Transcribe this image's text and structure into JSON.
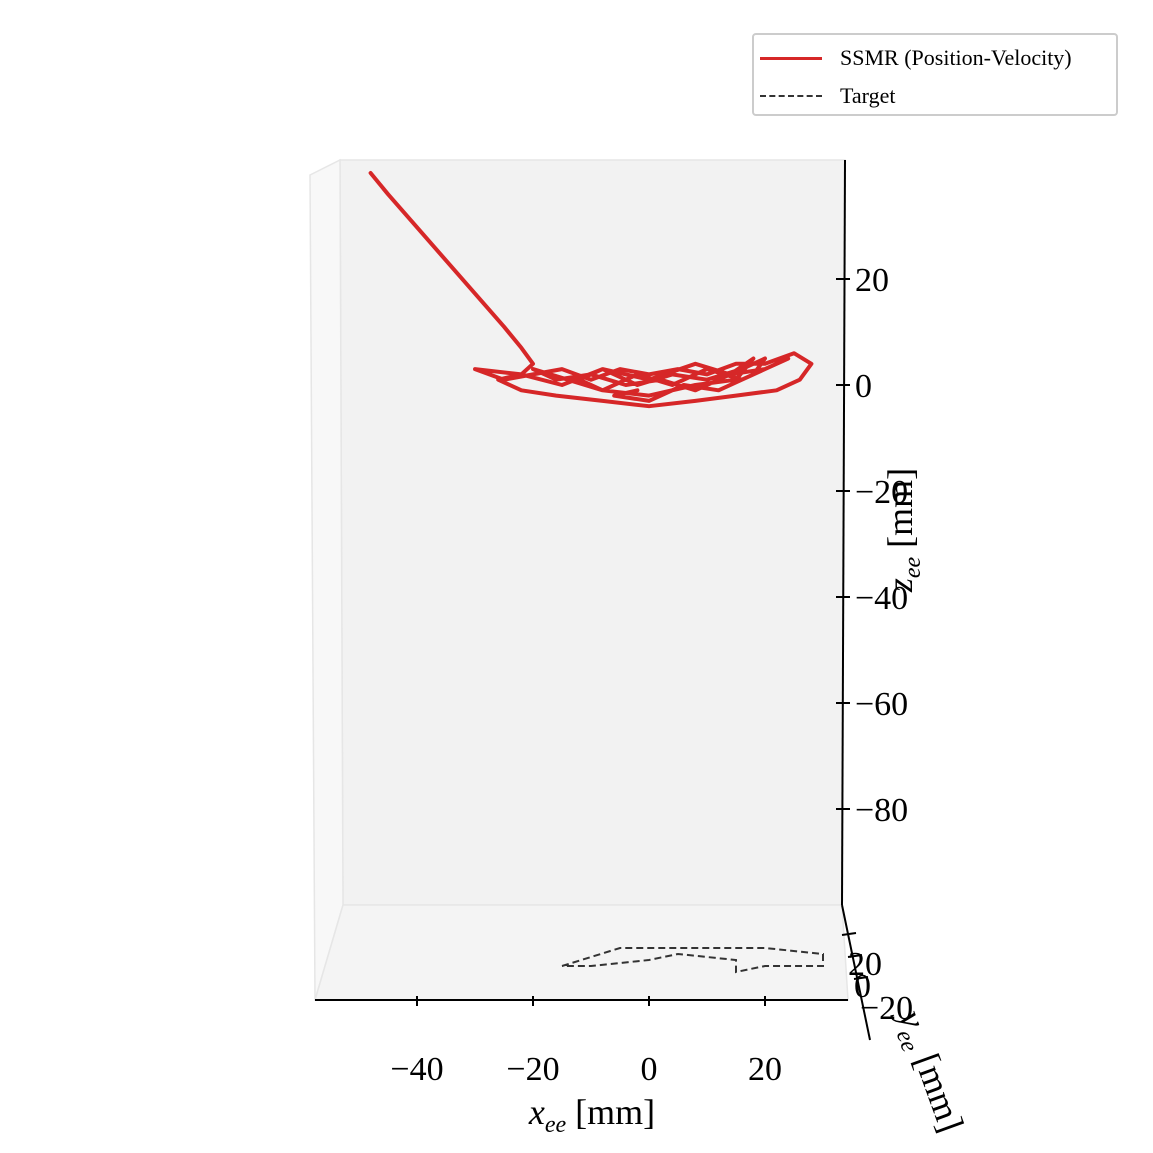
{
  "chart_data": {
    "type": "line3d",
    "title": "",
    "xlabel": "x_ee [mm]",
    "ylabel": "y_ee [mm]",
    "zlabel": "z_ee [mm]",
    "x_ticks": [
      "−40",
      "−20",
      "0",
      "20"
    ],
    "z_ticks": [
      "20",
      "0",
      "−20",
      "−40",
      "−60",
      "−80"
    ],
    "y_ticks": [
      "20",
      "0",
      "−20"
    ],
    "x_range": [
      -58,
      33
    ],
    "z_range": [
      -100,
      42
    ],
    "legend_position": "top-right",
    "series": [
      {
        "name": "SSMR (Position-Velocity)",
        "color": "#d62728",
        "style": "solid",
        "x": [
          -48,
          -45,
          -41,
          -37,
          -33,
          -29,
          -25,
          -22,
          -20,
          -22,
          -30,
          -25,
          -20,
          -15,
          -10,
          -5,
          0,
          5,
          10,
          15,
          20,
          25,
          28,
          26,
          22,
          15,
          8,
          0,
          -8,
          -16,
          -22,
          -26,
          -22,
          -15,
          -8,
          0,
          8,
          14,
          18,
          15,
          8,
          0,
          -8,
          -14,
          -20,
          -16,
          -10,
          -4,
          2,
          8,
          14,
          20,
          24,
          22,
          16,
          10,
          4,
          -2,
          -8,
          -12,
          -8,
          -2,
          4,
          10,
          16,
          20,
          18,
          12,
          6,
          0,
          -6,
          -2
        ],
        "z": [
          40,
          36,
          31,
          26,
          21,
          16,
          11,
          7,
          4,
          2,
          3,
          1,
          2,
          3,
          1,
          3,
          2,
          3,
          2,
          4,
          4,
          6,
          4,
          1,
          -1,
          -2,
          -3,
          -4,
          -3,
          -2,
          -1,
          1,
          2,
          0,
          3,
          1,
          4,
          2,
          5,
          1,
          0,
          -2,
          -1,
          1,
          3,
          1,
          2,
          0,
          1,
          -1,
          2,
          3,
          5,
          4,
          1,
          3,
          0,
          2,
          -1,
          1,
          3,
          0,
          2,
          1,
          3,
          5,
          2,
          -1,
          0,
          -3,
          -2,
          -1
        ]
      },
      {
        "name": "Target",
        "color": "#333333",
        "style": "dashed",
        "x": [
          -15,
          -5,
          10,
          20,
          30,
          30,
          20,
          15,
          15,
          5,
          0,
          -10,
          -15
        ],
        "y": [
          -5,
          10,
          10,
          10,
          5,
          -5,
          -5,
          -10,
          0,
          5,
          0,
          -5,
          -5
        ]
      }
    ]
  }
}
